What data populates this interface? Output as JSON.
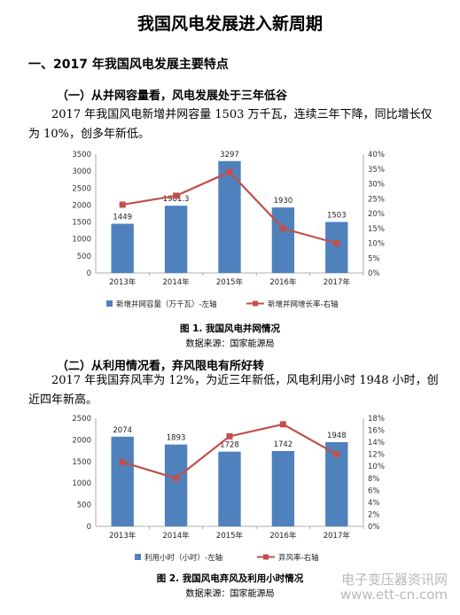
{
  "doc": {
    "title": "我国风电发展进入新周期",
    "section1": "一、2017 年我国风电发展主要特点",
    "sub1": "（一）从并网容量看，风电发展处于三年低谷",
    "para1": "2017 年我国风电新增并网容量 1503 万千瓦，连续三年下降，同比增长仅为 10%，创多年新低。",
    "caption1": "图 1. 我国风电并网情况",
    "source1": "数据来源：国家能源局",
    "sub2": "（二）从利用情况看，弃风限电有所好转",
    "para2": "2017 年我国弃风率为 12%，为近三年新低，风电利用小时 1948 小时，创近四年新高。",
    "caption2": "图 2. 我国风电弃风及利用小时情况",
    "source2": "数据来源：国家能源局",
    "watermark_line1": "电子变压器资讯网",
    "watermark_line2": "www.ett-cn.com"
  },
  "chart_data": [
    {
      "type": "bar",
      "categories": [
        "2013年",
        "2014年",
        "2015年",
        "2016年",
        "2017年"
      ],
      "series": [
        {
          "name": "新增并网容量（万千瓦）-左轴",
          "type": "bar",
          "axis": "left",
          "values": [
            1449,
            1981.3,
            3297,
            1930,
            1503
          ],
          "labels": [
            "1449",
            "1981.3",
            "3297",
            "1930",
            "1503"
          ],
          "color": "#4f81bd"
        },
        {
          "name": "新增并网增长率-右轴",
          "type": "line",
          "axis": "right",
          "values": [
            23,
            26,
            34,
            15,
            10
          ],
          "color": "#c0504d"
        }
      ],
      "y_left": {
        "min": 0,
        "max": 3500,
        "ticks": [
          "0",
          "500",
          "1000",
          "1500",
          "2000",
          "2500",
          "3000",
          "3500"
        ]
      },
      "y_right": {
        "min": 0,
        "max": 40,
        "ticks": [
          "0%",
          "5%",
          "10%",
          "15%",
          "20%",
          "25%",
          "30%",
          "35%",
          "40%"
        ]
      },
      "legend": "bottom"
    },
    {
      "type": "bar",
      "categories": [
        "2013年",
        "2014年",
        "2015年",
        "2016年",
        "2017年"
      ],
      "series": [
        {
          "name": "利用小时（小时）-左轴",
          "type": "bar",
          "axis": "left",
          "values": [
            2074,
            1893,
            1728,
            1742,
            1948
          ],
          "labels": [
            "2074",
            "1893",
            "1728",
            "1742",
            "1948"
          ],
          "color": "#4f81bd"
        },
        {
          "name": "弃风率-右轴",
          "type": "line",
          "axis": "right",
          "values": [
            10.7,
            8,
            15,
            17,
            12
          ],
          "color": "#c0504d"
        }
      ],
      "y_left": {
        "min": 0,
        "max": 2500,
        "ticks": [
          "0",
          "500",
          "1000",
          "1500",
          "2000",
          "2500"
        ]
      },
      "y_right": {
        "min": 0,
        "max": 18,
        "ticks": [
          "0%",
          "2%",
          "4%",
          "6%",
          "8%",
          "10%",
          "12%",
          "14%",
          "16%",
          "18%"
        ]
      },
      "legend": "bottom"
    }
  ]
}
